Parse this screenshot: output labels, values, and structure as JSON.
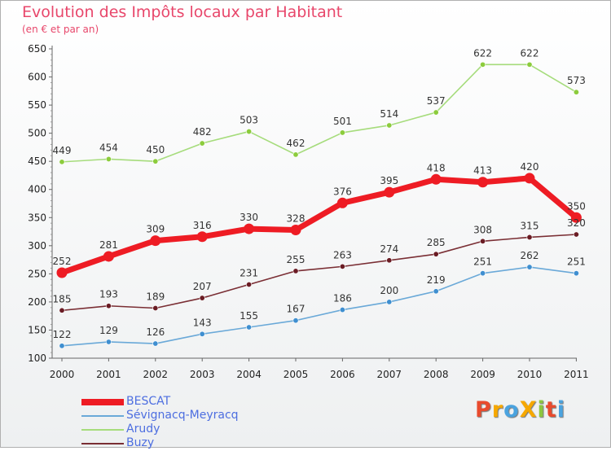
{
  "header": {
    "title": "Evolution des Impôts locaux par Habitant",
    "subtitle": "(en € et par an)"
  },
  "logo": {
    "text": "ProXiti",
    "colors": [
      "#e84b2e",
      "#f6a800",
      "#4aa3df",
      "#f6a800",
      "#8dc63f",
      "#e84b2e",
      "#4aa3df"
    ]
  },
  "chart_data": {
    "type": "line",
    "title": "Evolution des Impôts locaux par Habitant",
    "subtitle": "(en € et par an)",
    "xlabel": "",
    "ylabel": "",
    "x": [
      "2000",
      "2001",
      "2002",
      "2003",
      "2004",
      "2005",
      "2006",
      "2007",
      "2008",
      "2009",
      "2010",
      "2011"
    ],
    "ylim": [
      100,
      650
    ],
    "yticks": [
      100,
      150,
      200,
      250,
      300,
      350,
      400,
      450,
      500,
      550,
      600,
      650
    ],
    "grid": false,
    "legend_position": "bottom-left",
    "series": [
      {
        "name": "BESCAT",
        "color": "#ee1c24",
        "point_color": "#ee1c24",
        "emphasis": true,
        "values": [
          252,
          281,
          309,
          316,
          330,
          328,
          376,
          395,
          418,
          413,
          420,
          350
        ]
      },
      {
        "name": "Sévignacq-Meyracq",
        "color": "#6aa9d8",
        "point_color": "#3f8fd0",
        "emphasis": false,
        "values": [
          122,
          129,
          126,
          143,
          155,
          167,
          186,
          200,
          219,
          251,
          262,
          251
        ]
      },
      {
        "name": "Arudy",
        "color": "#a6dc7c",
        "point_color": "#8ccc3c",
        "emphasis": false,
        "values": [
          449,
          454,
          450,
          482,
          503,
          462,
          501,
          514,
          537,
          622,
          622,
          573
        ]
      },
      {
        "name": "Buzy",
        "color": "#7a2e34",
        "point_color": "#6a1c24",
        "emphasis": false,
        "values": [
          185,
          193,
          189,
          207,
          231,
          255,
          263,
          274,
          285,
          308,
          315,
          320
        ]
      }
    ]
  }
}
